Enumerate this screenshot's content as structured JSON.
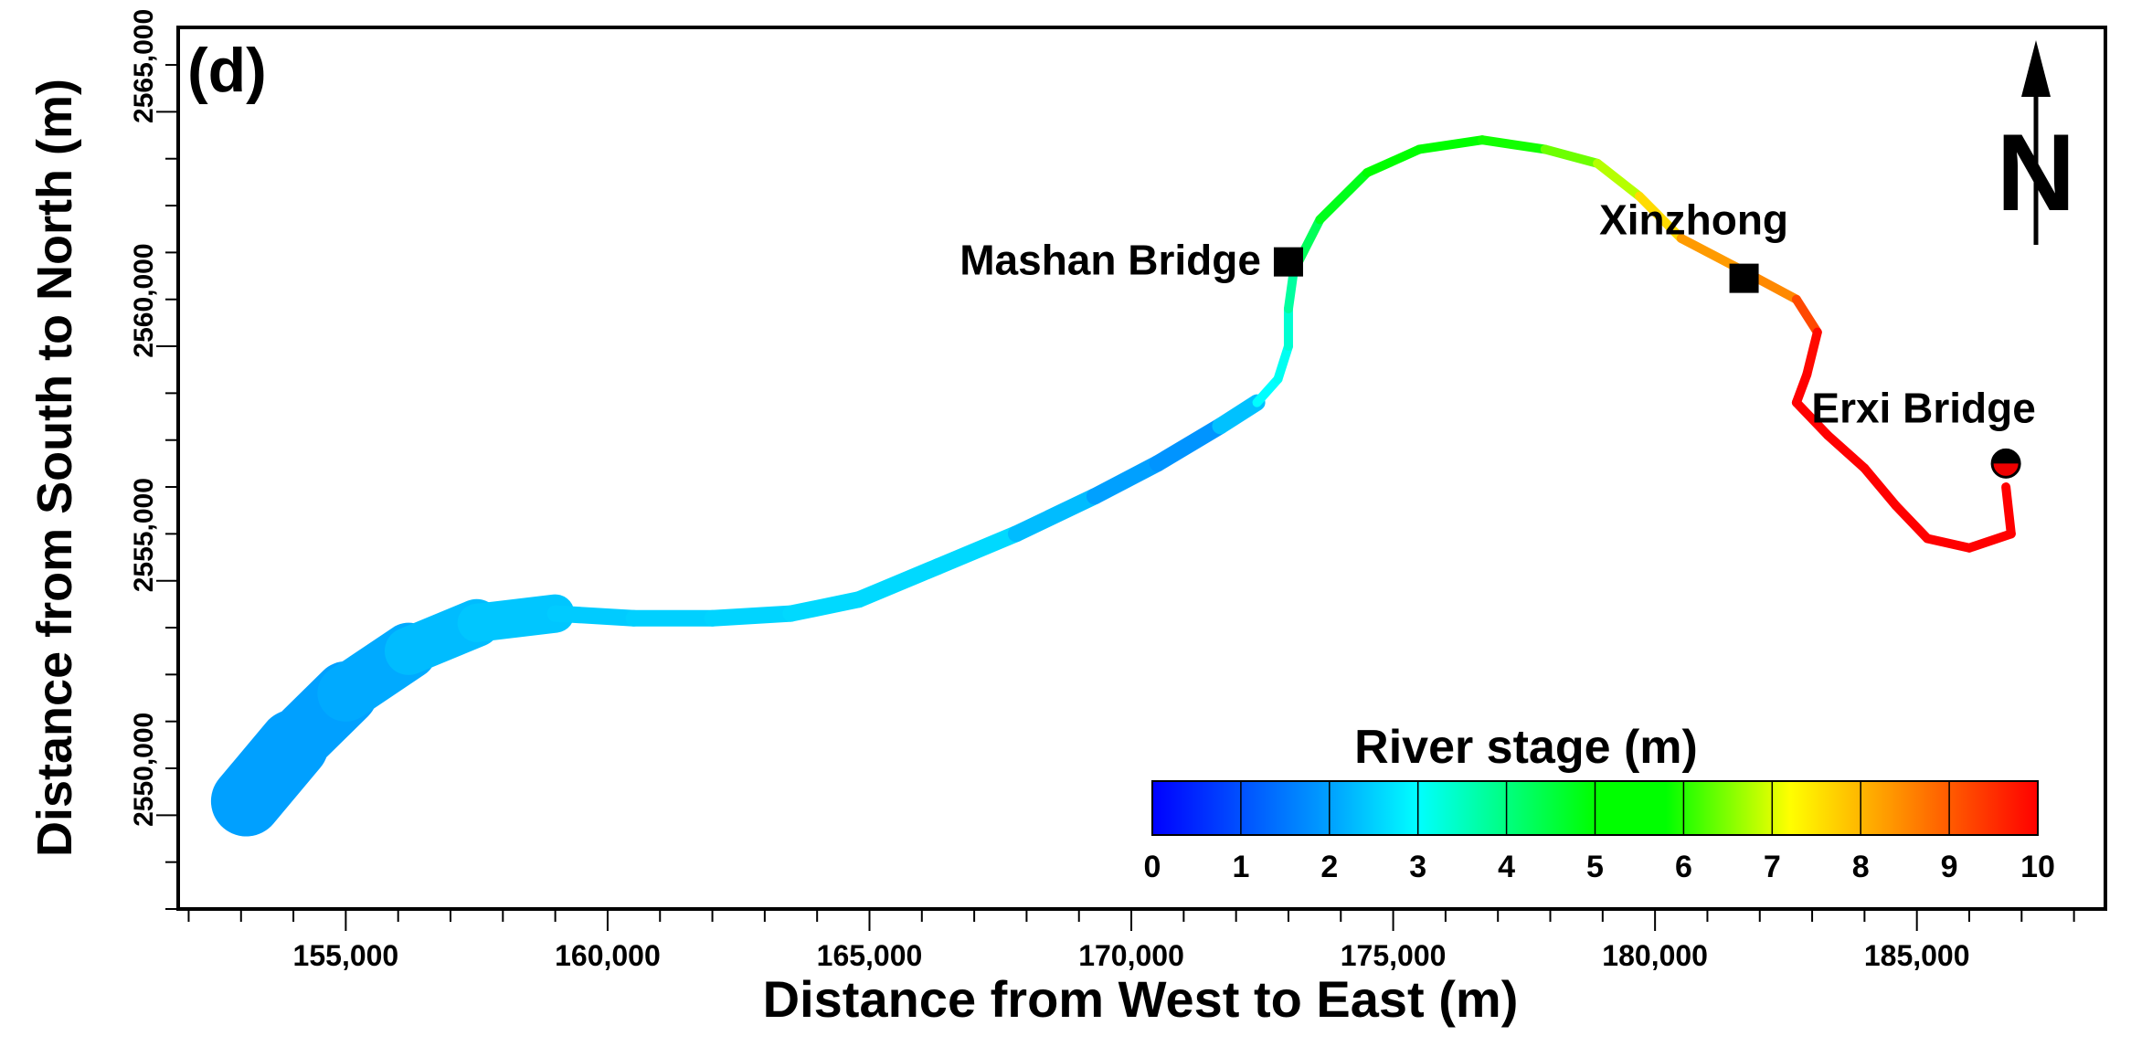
{
  "panel_label": "(d)",
  "x_axis": {
    "label": "Distance from West to East (m)",
    "range": [
      151800,
      188600
    ],
    "ticks": [
      155000,
      160000,
      165000,
      170000,
      175000,
      180000,
      185000
    ],
    "tick_labels": [
      "155,000",
      "160,000",
      "165,000",
      "170,000",
      "175,000",
      "180,000",
      "185,000"
    ],
    "minor_step": 1000
  },
  "y_axis": {
    "label": "Distance from  South to North (m)",
    "range": [
      2548000,
      2566800
    ],
    "ticks": [
      2550000,
      2555000,
      2560000,
      2565000
    ],
    "tick_labels": [
      "2550,000",
      "2555,000",
      "2560,000",
      "2565,000"
    ],
    "minor_step": 1000
  },
  "north_arrow": {
    "letter": "N"
  },
  "places": [
    {
      "name": "Mashan Bridge",
      "x": 173000,
      "y": 2561800,
      "marker": "square"
    },
    {
      "name": "Xinzhong",
      "x": 181700,
      "y": 2561450,
      "marker": "square"
    },
    {
      "name": "Erxi Bridge",
      "x": 186700,
      "y": 2557500,
      "marker": "circle"
    }
  ],
  "colorbar": {
    "title": "River stage (m)",
    "min": 0,
    "max": 10,
    "ticks": [
      0,
      1,
      2,
      3,
      4,
      5,
      6,
      7,
      8,
      9,
      10
    ],
    "tick_labels": [
      "0",
      "1",
      "2",
      "3",
      "4",
      "5",
      "6",
      "7",
      "8",
      "9",
      "10"
    ],
    "colors": [
      "#0000ff",
      "#00a0ff",
      "#00ffff",
      "#00ff00",
      "#ffff00",
      "#ff0000"
    ]
  },
  "river": {
    "stage_units": "m",
    "centerline": [
      [
        153100,
        2550300,
        2.0
      ],
      [
        154000,
        2551500,
        2.0
      ],
      [
        155000,
        2552600,
        2.0
      ],
      [
        156200,
        2553500,
        2.2
      ],
      [
        157500,
        2554100,
        2.4
      ],
      [
        159000,
        2554300,
        2.4
      ],
      [
        160500,
        2554200,
        2.5
      ],
      [
        162000,
        2554200,
        2.5
      ],
      [
        163500,
        2554300,
        2.6
      ],
      [
        164800,
        2554600,
        2.6
      ],
      [
        166300,
        2555300,
        2.6
      ],
      [
        167800,
        2556000,
        2.6
      ],
      [
        169300,
        2556800,
        2.0
      ],
      [
        170500,
        2557500,
        2.0
      ],
      [
        171700,
        2558300,
        1.7
      ],
      [
        172400,
        2558800,
        3.0
      ],
      [
        172800,
        2559300,
        3.0
      ],
      [
        173000,
        2560000,
        3.2
      ],
      [
        173000,
        2560800,
        3.5
      ],
      [
        173100,
        2561600,
        4.0
      ],
      [
        173600,
        2562700,
        4.6
      ],
      [
        174500,
        2563700,
        5.0
      ],
      [
        175500,
        2564200,
        5.3
      ],
      [
        176700,
        2564400,
        5.6
      ],
      [
        177900,
        2564200,
        6.2
      ],
      [
        178900,
        2563900,
        6.6
      ],
      [
        179700,
        2563200,
        7.0
      ],
      [
        180500,
        2562300,
        8.2
      ],
      [
        181700,
        2561600,
        8.4
      ],
      [
        182700,
        2561000,
        8.6
      ],
      [
        183100,
        2560300,
        9.8
      ],
      [
        182900,
        2559400,
        10.0
      ],
      [
        182700,
        2558800,
        10.0
      ],
      [
        183300,
        2558100,
        10.0
      ],
      [
        184000,
        2557400,
        10.0
      ],
      [
        184600,
        2556600,
        10.0
      ],
      [
        185200,
        2555900,
        10.0
      ],
      [
        186000,
        2555700,
        10.0
      ],
      [
        186800,
        2556000,
        10.0
      ],
      [
        186700,
        2557000,
        10.0
      ]
    ]
  }
}
